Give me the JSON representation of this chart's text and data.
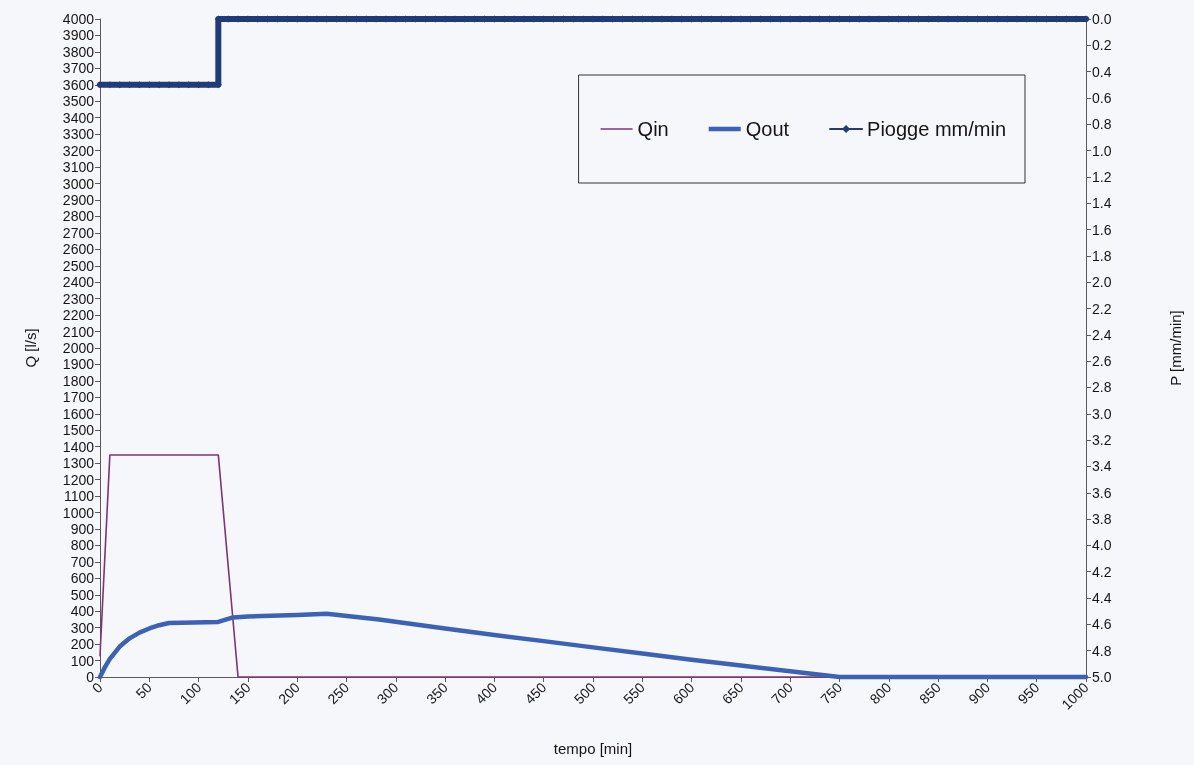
{
  "chart_data": {
    "type": "line",
    "xlabel": "tempo [min]",
    "ylabel": "Q [l/s]",
    "y2label": "P [mm/min]",
    "xlim": [
      0,
      1000
    ],
    "xticks": [
      0,
      50,
      100,
      150,
      200,
      250,
      300,
      350,
      400,
      450,
      500,
      550,
      600,
      650,
      700,
      750,
      800,
      850,
      900,
      950,
      1000
    ],
    "ylim": [
      0,
      4000
    ],
    "yticks": [
      0,
      100,
      200,
      300,
      400,
      500,
      600,
      700,
      800,
      900,
      1000,
      1100,
      1200,
      1300,
      1400,
      1500,
      1600,
      1700,
      1800,
      1900,
      2000,
      2100,
      2200,
      2300,
      2400,
      2500,
      2600,
      2700,
      2800,
      2900,
      3000,
      3100,
      3200,
      3300,
      3400,
      3500,
      3600,
      3700,
      3800,
      3900,
      4000
    ],
    "y2lim": [
      5,
      0
    ],
    "y2ticks": [
      {
        "value": 0,
        "label": "0.0"
      },
      0.2,
      0.4,
      0.6,
      0.8,
      {
        "value": 1,
        "label": "1.0"
      },
      1.2,
      1.4,
      1.6,
      1.8,
      {
        "value": 2,
        "label": "2.0"
      },
      2.2,
      2.4,
      2.6,
      2.8,
      {
        "value": 3,
        "label": "3.0"
      },
      3.2,
      3.4,
      3.6,
      3.8,
      {
        "value": 4,
        "label": "4.0"
      },
      4.2,
      4.4,
      4.6,
      4.8,
      {
        "value": 5,
        "label": "5.0"
      }
    ],
    "grid": false,
    "legend": "top right",
    "series": [
      {
        "name": "Qin",
        "color": "#7f3478",
        "marker": "none",
        "x": [
          0,
          10,
          120,
          140,
          1000
        ],
        "values": [
          130,
          1350,
          1350,
          0,
          0
        ]
      },
      {
        "name": "Qout",
        "color": "#3b62b4",
        "marker": "none",
        "x": [
          0,
          5,
          10,
          20,
          30,
          40,
          50,
          60,
          70,
          120,
          135,
          150,
          200,
          230,
          283,
          350,
          400,
          450,
          500,
          550,
          600,
          650,
          700,
          750,
          1000
        ],
        "values": [
          0,
          60,
          110,
          185,
          235,
          270,
          295,
          315,
          328,
          335,
          362,
          368,
          377,
          385,
          350,
          295,
          255,
          218,
          180,
          143,
          105,
          70,
          35,
          0,
          0
        ]
      },
      {
        "name": "Piogge mm/min",
        "color": "#1f3c78",
        "marker": "diamond",
        "axis": "y2",
        "x": [
          0,
          10,
          20,
          30,
          40,
          50,
          60,
          70,
          80,
          90,
          100,
          110,
          120,
          120,
          130,
          140,
          150,
          160,
          170,
          180,
          190,
          200,
          210,
          220,
          230,
          240,
          250,
          260,
          270,
          280,
          290,
          300,
          310,
          320,
          330,
          340,
          350,
          360,
          370,
          380,
          390,
          400,
          410,
          420,
          430,
          440,
          450,
          460,
          470,
          480,
          490,
          500,
          510,
          520,
          530,
          540,
          550,
          560,
          570,
          580,
          590,
          600,
          610,
          620,
          630,
          640,
          650,
          660,
          670,
          680,
          690,
          700,
          710,
          720,
          730,
          740,
          750,
          760,
          770,
          780,
          790,
          800,
          810,
          820,
          830,
          840,
          850,
          860,
          870,
          880,
          890,
          900,
          910,
          920,
          930,
          940,
          950,
          960,
          970,
          980,
          990,
          1000
        ],
        "values": [
          0.5,
          0.5,
          0.5,
          0.5,
          0.5,
          0.5,
          0.5,
          0.5,
          0.5,
          0.5,
          0.5,
          0.5,
          0.5,
          0,
          0,
          0,
          0,
          0,
          0,
          0,
          0,
          0,
          0,
          0,
          0,
          0,
          0,
          0,
          0,
          0,
          0,
          0,
          0,
          0,
          0,
          0,
          0,
          0,
          0,
          0,
          0,
          0,
          0,
          0,
          0,
          0,
          0,
          0,
          0,
          0,
          0,
          0,
          0,
          0,
          0,
          0,
          0,
          0,
          0,
          0,
          0,
          0,
          0,
          0,
          0,
          0,
          0,
          0,
          0,
          0,
          0,
          0,
          0,
          0,
          0,
          0,
          0,
          0,
          0,
          0,
          0,
          0,
          0,
          0,
          0,
          0,
          0,
          0,
          0,
          0,
          0,
          0,
          0,
          0,
          0,
          0,
          0,
          0,
          0,
          0,
          0,
          0
        ]
      }
    ]
  }
}
